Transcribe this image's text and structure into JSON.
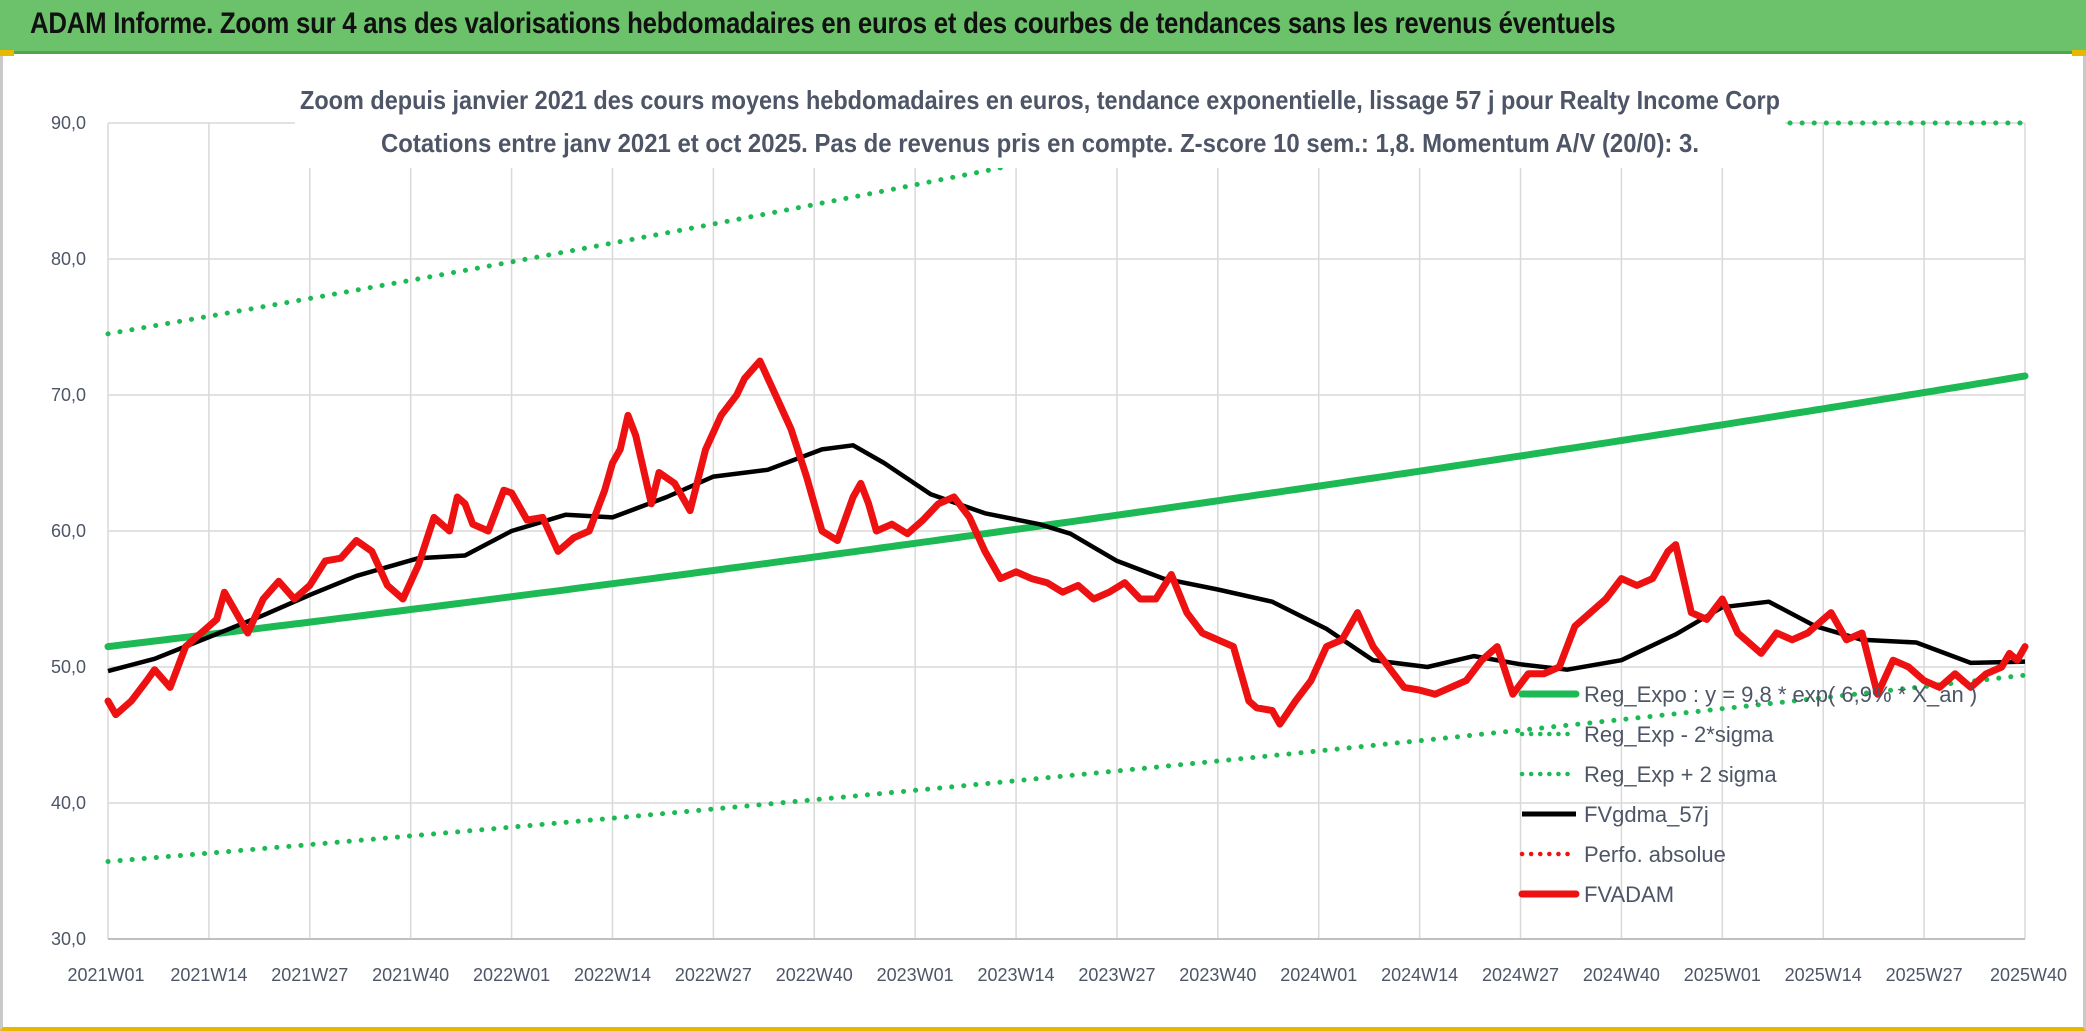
{
  "banner": {
    "title": "ADAM Informe. Zoom sur 4 ans des valorisations hebdomadaires en euros et des courbes de tendances sans les revenus éventuels"
  },
  "colors": {
    "banner_bg": "#6cc26a",
    "trend_green": "#1db954",
    "fvadam_red": "#ee1111",
    "gdma_black": "#000000",
    "text_gray": "#4d5566",
    "grid": "#d9d9d9"
  },
  "chart_data": {
    "type": "line",
    "title_line1": "Zoom depuis janvier 2021 des cours moyens hebdomadaires en euros, tendance exponentielle, lissage 57 j pour Realty Income Corp",
    "title_line2": "Cotations entre janv 2021 et oct 2025. Pas de revenus pris en compte. Z-score 10 sem.: 1,8. Momentum A/V (20/0): 3.",
    "x_tick_labels": [
      "2021W01",
      "2021W14",
      "2021W27",
      "2021W40",
      "2022W01",
      "2022W14",
      "2022W27",
      "2022W40",
      "2023W01",
      "2023W14",
      "2023W27",
      "2023W40",
      "2024W01",
      "2024W14",
      "2024W27",
      "2024W40",
      "2025W01",
      "2025W14",
      "2025W27",
      "2025W40"
    ],
    "y_tick_labels": [
      "90,0",
      "80,0",
      "70,0",
      "60,0",
      "50,0",
      "40,0",
      "30,0"
    ],
    "ylim": [
      30,
      90
    ],
    "xlim": [
      0,
      247
    ],
    "legend": [
      {
        "label": "Reg_Expo : y = 9,8 * exp( 6,9% * X_an )",
        "style": "solid",
        "color": "#1db954"
      },
      {
        "label": "Reg_Exp - 2*sigma",
        "style": "dotted",
        "color": "#1db954"
      },
      {
        "label": "Reg_Exp + 2 sigma",
        "style": "dotted",
        "color": "#1db954"
      },
      {
        "label": "FVgdma_57j",
        "style": "solid",
        "color": "#000000"
      },
      {
        "label": "Perfo. absolue",
        "style": "dotted",
        "color": "#ee1111"
      },
      {
        "label": "FVADAM",
        "style": "solid-thick",
        "color": "#ee1111"
      }
    ],
    "series": [
      {
        "name": "Reg_Expo",
        "style": "solid",
        "color": "#1db954",
        "x": [
          0,
          247
        ],
        "y": [
          51.5,
          71.4
        ],
        "curve": "exponential"
      },
      {
        "name": "Reg_Exp - 2*sigma",
        "style": "dotted",
        "color": "#1db954",
        "x": [
          0,
          247
        ],
        "y": [
          35.7,
          49.4
        ],
        "curve": "exponential"
      },
      {
        "name": "Reg_Exp + 2 sigma",
        "style": "dotted",
        "color": "#1db954",
        "x": [
          0,
          247
        ],
        "y": [
          74.5,
          103.2
        ],
        "curve": "exponential",
        "clip_to_axis": true
      },
      {
        "name": "FVgdma_57j",
        "style": "solid",
        "color": "#000000",
        "points": [
          [
            0,
            49.7
          ],
          [
            6,
            50.6
          ],
          [
            13,
            52.2
          ],
          [
            20,
            53.8
          ],
          [
            26,
            55.3
          ],
          [
            32,
            56.7
          ],
          [
            40,
            58.0
          ],
          [
            46,
            58.2
          ],
          [
            52,
            60.0
          ],
          [
            59,
            61.2
          ],
          [
            65,
            61.0
          ],
          [
            72,
            62.5
          ],
          [
            78,
            64.0
          ],
          [
            85,
            64.5
          ],
          [
            92,
            66.0
          ],
          [
            96,
            66.3
          ],
          [
            100,
            65.0
          ],
          [
            106,
            62.7
          ],
          [
            113,
            61.3
          ],
          [
            120,
            60.5
          ],
          [
            124,
            59.8
          ],
          [
            130,
            57.8
          ],
          [
            136,
            56.5
          ],
          [
            143,
            55.7
          ],
          [
            150,
            54.8
          ],
          [
            157,
            52.8
          ],
          [
            163,
            50.5
          ],
          [
            170,
            50.0
          ],
          [
            176,
            50.8
          ],
          [
            182,
            50.2
          ],
          [
            188,
            49.8
          ],
          [
            195,
            50.5
          ],
          [
            202,
            52.4
          ],
          [
            208,
            54.4
          ],
          [
            214,
            54.8
          ],
          [
            220,
            53.0
          ],
          [
            226,
            52.0
          ],
          [
            233,
            51.8
          ],
          [
            240,
            50.3
          ],
          [
            247,
            50.4
          ]
        ]
      },
      {
        "name": "FVADAM",
        "style": "solid-thick",
        "color": "#ee1111",
        "points": [
          [
            0,
            47.5
          ],
          [
            1,
            46.5
          ],
          [
            3,
            47.5
          ],
          [
            5,
            49.0
          ],
          [
            6,
            49.8
          ],
          [
            8,
            48.5
          ],
          [
            10,
            51.5
          ],
          [
            12,
            52.5
          ],
          [
            14,
            53.5
          ],
          [
            15,
            55.5
          ],
          [
            16,
            54.5
          ],
          [
            18,
            52.5
          ],
          [
            20,
            55.0
          ],
          [
            22,
            56.3
          ],
          [
            24,
            55.0
          ],
          [
            26,
            56.0
          ],
          [
            28,
            57.8
          ],
          [
            30,
            58.0
          ],
          [
            32,
            59.3
          ],
          [
            34,
            58.5
          ],
          [
            36,
            56.0
          ],
          [
            38,
            55.0
          ],
          [
            40,
            57.5
          ],
          [
            42,
            61.0
          ],
          [
            44,
            60.0
          ],
          [
            45,
            62.5
          ],
          [
            46,
            62.0
          ],
          [
            47,
            60.5
          ],
          [
            49,
            60.0
          ],
          [
            51,
            63.0
          ],
          [
            52,
            62.8
          ],
          [
            54,
            60.8
          ],
          [
            56,
            61.0
          ],
          [
            58,
            58.5
          ],
          [
            60,
            59.5
          ],
          [
            62,
            60.0
          ],
          [
            64,
            63.0
          ],
          [
            65,
            65.0
          ],
          [
            66,
            66.0
          ],
          [
            67,
            68.5
          ],
          [
            68,
            67.0
          ],
          [
            70,
            62.0
          ],
          [
            71,
            64.3
          ],
          [
            73,
            63.5
          ],
          [
            75,
            61.5
          ],
          [
            77,
            66.0
          ],
          [
            79,
            68.5
          ],
          [
            81,
            70.0
          ],
          [
            82,
            71.2
          ],
          [
            84,
            72.5
          ],
          [
            86,
            70.0
          ],
          [
            88,
            67.5
          ],
          [
            90,
            64.0
          ],
          [
            92,
            60.0
          ],
          [
            94,
            59.3
          ],
          [
            96,
            62.5
          ],
          [
            97,
            63.5
          ],
          [
            98,
            62.0
          ],
          [
            99,
            60.0
          ],
          [
            101,
            60.5
          ],
          [
            103,
            59.8
          ],
          [
            105,
            60.8
          ],
          [
            107,
            62.0
          ],
          [
            109,
            62.5
          ],
          [
            111,
            61.0
          ],
          [
            113,
            58.5
          ],
          [
            115,
            56.5
          ],
          [
            117,
            57.0
          ],
          [
            119,
            56.5
          ],
          [
            121,
            56.2
          ],
          [
            123,
            55.5
          ],
          [
            125,
            56.0
          ],
          [
            127,
            55.0
          ],
          [
            129,
            55.5
          ],
          [
            131,
            56.2
          ],
          [
            133,
            55.0
          ],
          [
            135,
            55.0
          ],
          [
            137,
            56.8
          ],
          [
            139,
            54.0
          ],
          [
            141,
            52.5
          ],
          [
            143,
            52.0
          ],
          [
            145,
            51.5
          ],
          [
            147,
            47.5
          ],
          [
            148,
            47.0
          ],
          [
            150,
            46.8
          ],
          [
            151,
            45.8
          ],
          [
            153,
            47.5
          ],
          [
            155,
            49.0
          ],
          [
            157,
            51.5
          ],
          [
            159,
            52.0
          ],
          [
            161,
            54.0
          ],
          [
            163,
            51.5
          ],
          [
            165,
            50.0
          ],
          [
            167,
            48.5
          ],
          [
            169,
            48.3
          ],
          [
            171,
            48.0
          ],
          [
            173,
            48.5
          ],
          [
            175,
            49.0
          ],
          [
            177,
            50.5
          ],
          [
            179,
            51.5
          ],
          [
            181,
            48.0
          ],
          [
            183,
            49.5
          ],
          [
            185,
            49.5
          ],
          [
            187,
            50.0
          ],
          [
            189,
            53.0
          ],
          [
            191,
            54.0
          ],
          [
            193,
            55.0
          ],
          [
            195,
            56.5
          ],
          [
            197,
            56.0
          ],
          [
            199,
            56.5
          ],
          [
            201,
            58.5
          ],
          [
            202,
            59.0
          ],
          [
            204,
            54.0
          ],
          [
            206,
            53.5
          ],
          [
            208,
            55.0
          ],
          [
            210,
            52.5
          ],
          [
            212,
            51.5
          ],
          [
            213,
            51.0
          ],
          [
            215,
            52.5
          ],
          [
            217,
            52.0
          ],
          [
            219,
            52.5
          ],
          [
            221,
            53.5
          ],
          [
            222,
            54.0
          ],
          [
            224,
            52.0
          ],
          [
            226,
            52.5
          ],
          [
            228,
            48.0
          ],
          [
            230,
            50.5
          ],
          [
            232,
            50.0
          ],
          [
            234,
            49.0
          ],
          [
            236,
            48.5
          ],
          [
            238,
            49.5
          ],
          [
            240,
            48.5
          ],
          [
            242,
            49.5
          ],
          [
            244,
            50.0
          ],
          [
            245,
            51.0
          ],
          [
            246,
            50.5
          ],
          [
            247,
            51.5
          ]
        ]
      }
    ]
  }
}
